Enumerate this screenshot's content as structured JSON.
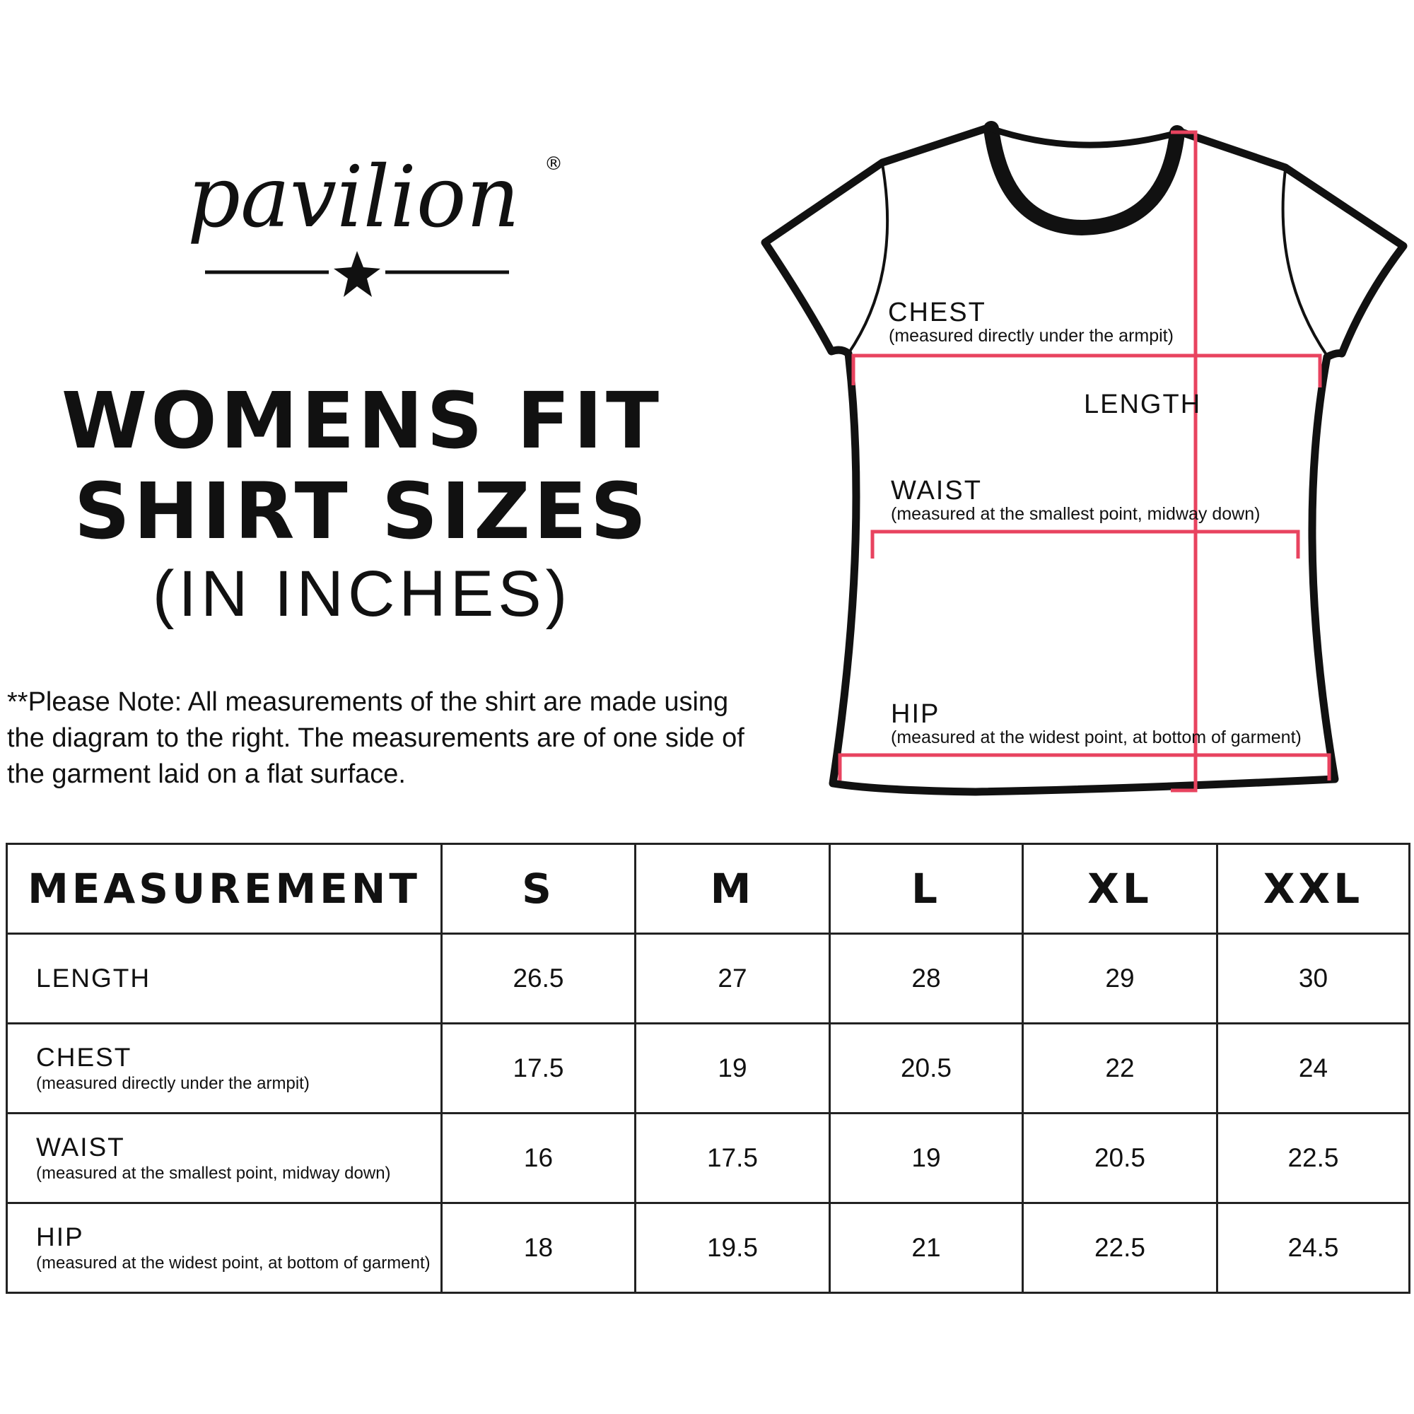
{
  "logo": {
    "text": "pavilion",
    "mark": "®"
  },
  "title": {
    "line1": "WOMENS FIT",
    "line2": "SHIRT SIZES",
    "line3": "(IN INCHES)"
  },
  "note": "**Please Note:  All measurements of the shirt are made using the diagram to the right.  The measurements are of one side of the garment laid on a flat surface.",
  "diagram": {
    "accent_color": "#e8435f",
    "chest": {
      "label": "CHEST",
      "sub": "(measured directly under the armpit)"
    },
    "length": {
      "label": "LENGTH"
    },
    "waist": {
      "label": "WAIST",
      "sub": "(measured at the smallest point, midway down)"
    },
    "hip": {
      "label": "HIP",
      "sub": "(measured at the widest point, at bottom of garment)"
    }
  },
  "table": {
    "headers": [
      "MEASUREMENT",
      "S",
      "M",
      "L",
      "XL",
      "XXL"
    ],
    "rows": [
      {
        "label": "LENGTH",
        "sub": "",
        "values": [
          "26.5",
          "27",
          "28",
          "29",
          "30"
        ]
      },
      {
        "label": "CHEST",
        "sub": "(measured directly under the armpit)",
        "values": [
          "17.5",
          "19",
          "20.5",
          "22",
          "24"
        ]
      },
      {
        "label": "WAIST",
        "sub": "(measured at the smallest point, midway down)",
        "values": [
          "16",
          "17.5",
          "19",
          "20.5",
          "22.5"
        ]
      },
      {
        "label": "HIP",
        "sub": "(measured at the widest point, at bottom of garment)",
        "values": [
          "18",
          "19.5",
          "21",
          "22.5",
          "24.5"
        ]
      }
    ]
  }
}
